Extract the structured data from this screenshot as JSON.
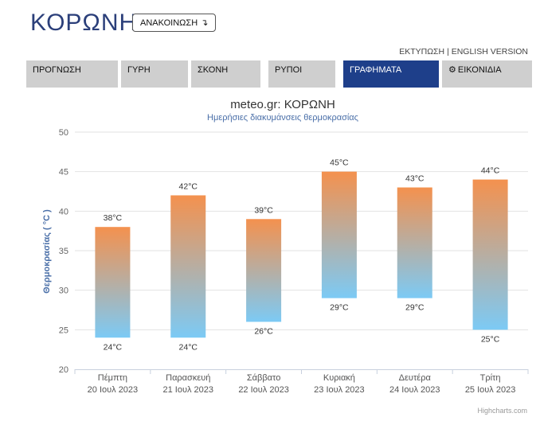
{
  "header": {
    "city": "ΚΟΡΩΝΗ",
    "announce_label": "ΑΝΑΚΟΙΝΩΣΗ",
    "announce_arrow": "↴"
  },
  "top_links": {
    "print": "ΕΚΤΥΠΩΣΗ",
    "separator": "|",
    "english": "ENGLISH VERSION"
  },
  "tabs": [
    {
      "label": "ΠΡΟΓΝΩΣΗ",
      "active": false
    },
    {
      "label": "ΓΥΡΗ",
      "active": false
    },
    {
      "label": "ΣΚΟΝΗ",
      "active": false
    },
    {
      "label": "ΡΥΠΟΙ",
      "active": false
    },
    {
      "label": "ΓΡΑΦΗΜΑΤΑ",
      "active": true
    },
    {
      "label": "ΕΙΚΟΝΙΔΙΑ",
      "active": false,
      "icon": "gear-icon"
    }
  ],
  "colors": {
    "brand": "#2b3f7a",
    "active_tab": "#1e3f8a",
    "bar_top": "#f4914e",
    "bar_bottom": "#7ccaf5"
  },
  "chart_data": {
    "type": "columnrange",
    "title": "meteo.gr: ΚΟΡΩΝΗ",
    "subtitle": "Ημερήσιες διακυμάνσεις θερμοκρασίας",
    "ylabel": "Θερμοκρασίας ( °C )",
    "ylim": [
      20,
      50
    ],
    "yticks": [
      20,
      25,
      30,
      35,
      40,
      45,
      50
    ],
    "grid": true,
    "categories": [
      {
        "day": "Πέμπτη",
        "date": "20 Ιουλ 2023"
      },
      {
        "day": "Παρασκευή",
        "date": "21 Ιουλ 2023"
      },
      {
        "day": "Σάββατο",
        "date": "22 Ιουλ 2023"
      },
      {
        "day": "Κυριακή",
        "date": "23 Ιουλ 2023"
      },
      {
        "day": "Δευτέρα",
        "date": "24 Ιουλ 2023"
      },
      {
        "day": "Τρίτη",
        "date": "25 Ιουλ 2023"
      }
    ],
    "low": [
      24,
      24,
      26,
      29,
      29,
      25
    ],
    "high": [
      38,
      42,
      39,
      45,
      43,
      44
    ],
    "unit": "°C",
    "credit": "Highcharts.com"
  }
}
